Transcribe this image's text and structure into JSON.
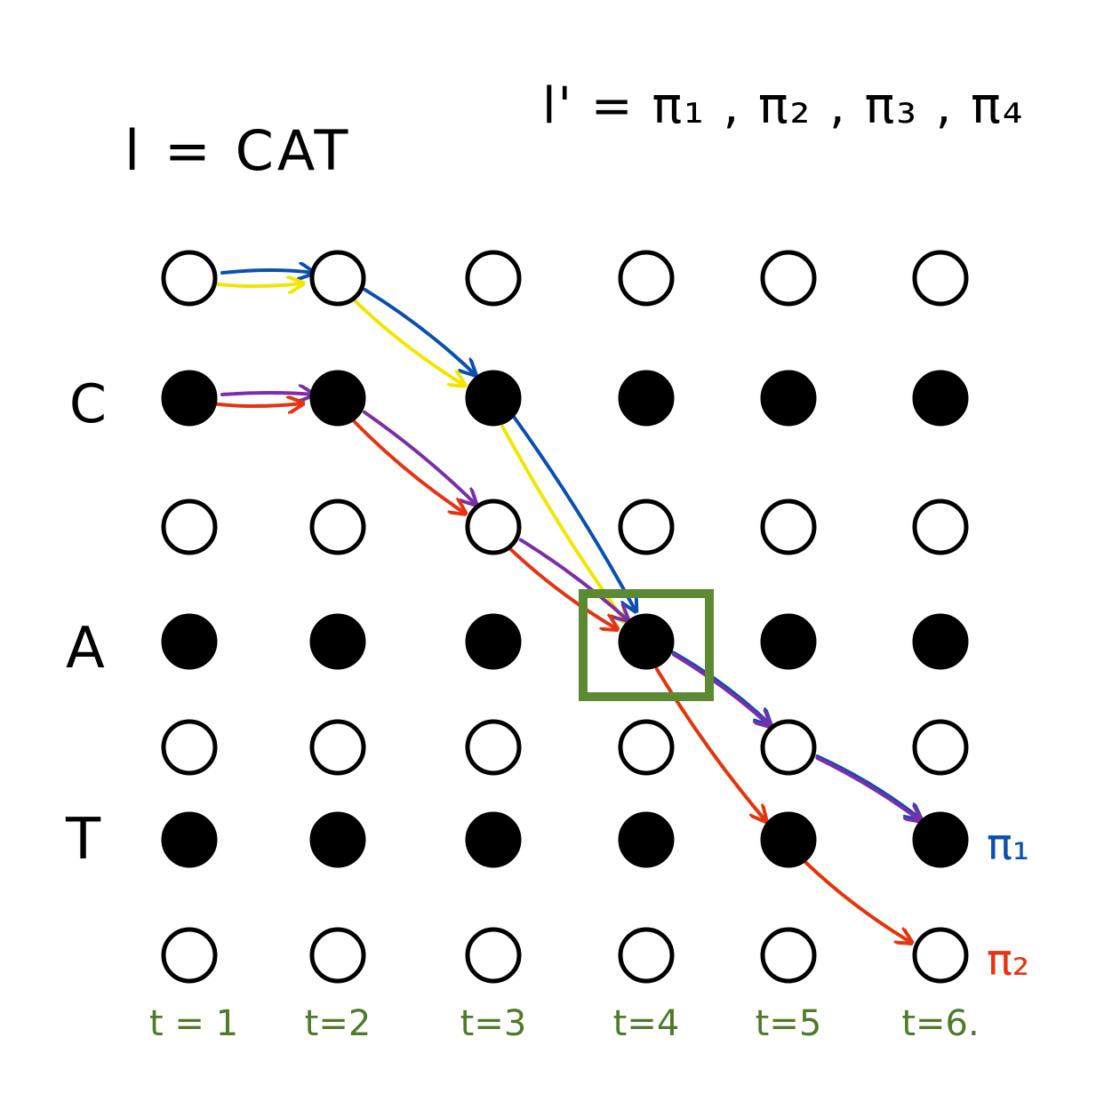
{
  "equation_l": "l = CAT",
  "equation_l_prime": "l' = π₁ , π₂ , π₃ , π₄",
  "row_labels": [
    {
      "row": 1,
      "text": "C"
    },
    {
      "row": 3,
      "text": "A"
    },
    {
      "row": 5,
      "text": "T"
    }
  ],
  "time_labels": [
    "t = 1",
    "t=2",
    "t=3",
    "t=4",
    "t=5",
    "t=6."
  ],
  "grid": {
    "rows": 7,
    "cols": 6,
    "filled_rows": [
      1,
      3,
      5
    ]
  },
  "highlight": {
    "row": 3,
    "col": 3,
    "color": "#5b8a32"
  },
  "paths": [
    {
      "label": "π₁",
      "color": "#0b4fb3",
      "rows": [
        0,
        0,
        1,
        3,
        4,
        5
      ]
    },
    {
      "label": "",
      "color": "#f2e600",
      "rows": [
        0,
        0,
        1,
        3,
        5,
        6
      ]
    },
    {
      "label": "",
      "color": "#7a2fa8",
      "rows": [
        1,
        1,
        2,
        3,
        4,
        5
      ]
    },
    {
      "label": "π₂",
      "color": "#e63312",
      "rows": [
        1,
        1,
        2,
        3,
        5,
        6
      ]
    }
  ],
  "colors": {
    "time_labels": "#4e7a2a",
    "ink": "#000000"
  }
}
